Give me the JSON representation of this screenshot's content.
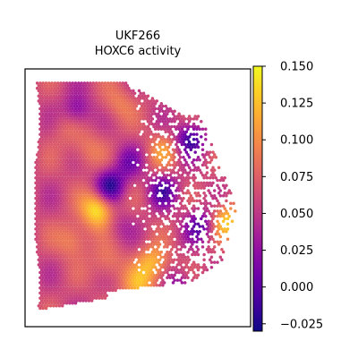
{
  "figure": {
    "title_line1": "UKF266",
    "title_line2": "HOXC6 activity"
  },
  "colormap": {
    "name": "plasma",
    "stops": [
      "#0d0887",
      "#41049d",
      "#6a00a8",
      "#8f0da4",
      "#b12a90",
      "#cc4778",
      "#e16462",
      "#f2844b",
      "#fca636",
      "#fcce25",
      "#f0f921"
    ]
  },
  "chart_data": {
    "type": "heatmap",
    "title": "UKF266\nHOXC6 activity",
    "xlabel": "",
    "ylabel": "",
    "axis_ticks_visible": false,
    "grid": false,
    "legend": "none",
    "colorbar": {
      "placement": "right",
      "vmin": -0.03,
      "vmax": 0.15,
      "ticks": [
        -0.025,
        0.0,
        0.025,
        0.05,
        0.075,
        0.1,
        0.125,
        0.15
      ],
      "tick_labels": [
        "−0.025",
        "0.000",
        "0.025",
        "0.050",
        "0.075",
        "0.100",
        "0.125",
        "0.150"
      ]
    },
    "value_peaks": [
      {
        "x": 0.3,
        "y": 0.55,
        "value": 0.145
      },
      {
        "x": 0.18,
        "y": 0.68,
        "value": 0.1
      },
      {
        "x": 0.5,
        "y": 0.88,
        "value": 0.11
      },
      {
        "x": 0.57,
        "y": 0.78,
        "value": 0.12
      },
      {
        "x": 0.93,
        "y": 0.6,
        "value": 0.13
      },
      {
        "x": 0.25,
        "y": 0.3,
        "value": 0.09
      },
      {
        "x": 0.35,
        "y": 0.78,
        "value": 0.09
      },
      {
        "x": 0.62,
        "y": 0.3,
        "value": 0.1
      },
      {
        "x": 0.15,
        "y": 0.2,
        "value": 0.08
      },
      {
        "x": 0.4,
        "y": 0.1,
        "value": 0.09
      }
    ],
    "value_troughs": [
      {
        "x": 0.36,
        "y": 0.45,
        "value": -0.02
      },
      {
        "x": 0.75,
        "y": 0.25,
        "value": -0.015
      },
      {
        "x": 0.62,
        "y": 0.47,
        "value": 0.0
      },
      {
        "x": 0.8,
        "y": 0.62,
        "value": 0.0
      },
      {
        "x": 0.2,
        "y": 0.13,
        "value": 0.01
      },
      {
        "x": 0.45,
        "y": 0.35,
        "value": 0.02
      },
      {
        "x": 0.7,
        "y": 0.88,
        "value": 0.02
      },
      {
        "x": 0.4,
        "y": 0.62,
        "value": 0.04
      }
    ],
    "base_value": 0.06
  }
}
